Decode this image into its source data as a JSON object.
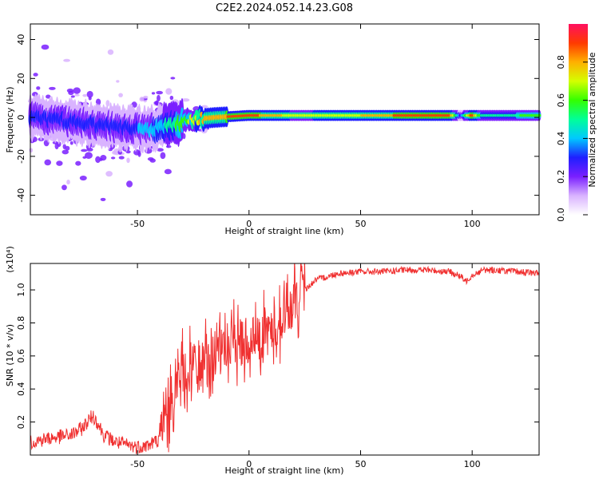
{
  "figure": {
    "title": "C2E2.2024.052.14.23.G08"
  },
  "chart_data": [
    {
      "type": "heatmap",
      "title": "C2E2.2024.052.14.23.G08",
      "xlabel": "Height of straight line (km)",
      "ylabel": "Frequency (Hz)",
      "xlim": [
        -98,
        130
      ],
      "ylim": [
        -50,
        48
      ],
      "xticks": [
        -50,
        0,
        50,
        100
      ],
      "yticks": [
        -40,
        -20,
        0,
        20,
        40
      ],
      "xticklabels": [
        "-50",
        "0",
        "50",
        "100"
      ],
      "yticklabels": [
        "-40",
        "-20",
        "0",
        "20",
        "40"
      ],
      "colorbar": {
        "label": "Normalized spectral amplitude",
        "range": [
          0.0,
          1.0
        ],
        "ticks": [
          0.0,
          0.2,
          0.4,
          0.6,
          0.8
        ],
        "ticklabels": [
          "0.0",
          "0.2",
          "0.4",
          "0.6",
          "0.8"
        ],
        "colormap": [
          "#ffffff",
          "#d9b3ff",
          "#7a1fff",
          "#1f1fff",
          "#00c8ff",
          "#00ff99",
          "#33ff00",
          "#d4ff00",
          "#ffb000",
          "#ff3a00",
          "#ff1060"
        ]
      },
      "ridge_frequency": {
        "x": [
          -98,
          -80,
          -60,
          -45,
          -35,
          -25,
          -15,
          0,
          20,
          60,
          100,
          130
        ],
        "y": [
          0,
          -2,
          -5,
          -6,
          -4,
          -1,
          0,
          1,
          1,
          1,
          1,
          1
        ]
      },
      "peak_amplitude": {
        "x": [
          -98,
          -60,
          -40,
          -30,
          -20,
          0,
          20,
          50,
          80,
          90,
          95,
          100,
          105,
          130
        ],
        "y": [
          0.25,
          0.3,
          0.4,
          0.6,
          0.8,
          0.9,
          0.7,
          0.75,
          0.95,
          0.9,
          0.3,
          0.9,
          0.45,
          0.6
        ]
      }
    },
    {
      "type": "line",
      "xlabel": "Height of straight line (km)",
      "ylabel": "SNR (10 * v/v)",
      "scale_note": "(x10⁴)",
      "xlim": [
        -98,
        130
      ],
      "ylim": [
        0,
        1.16
      ],
      "xticks": [
        -50,
        0,
        50,
        100
      ],
      "yticks": [
        0.2,
        0.4,
        0.6,
        0.8,
        1.0
      ],
      "xticklabels": [
        "-50",
        "0",
        "50",
        "100"
      ],
      "yticklabels": [
        "0.2",
        "0.4",
        "0.6",
        "0.8",
        "1.0"
      ],
      "color": "#f03030",
      "series": [
        {
          "x": [
            -98,
            -90,
            -80,
            -75,
            -70,
            -68,
            -65,
            -60,
            -55,
            -50,
            -45,
            -40,
            -36,
            -34,
            -30,
            -25,
            -20,
            -15,
            -10,
            -5,
            0,
            5,
            10,
            15,
            20,
            25,
            30,
            40,
            50,
            60,
            70,
            80,
            90,
            95,
            97,
            100,
            105,
            110,
            120,
            130
          ],
          "y": [
            0.08,
            0.1,
            0.12,
            0.16,
            0.24,
            0.2,
            0.12,
            0.08,
            0.06,
            0.05,
            0.06,
            0.1,
            0.25,
            0.4,
            0.5,
            0.52,
            0.55,
            0.6,
            0.65,
            0.68,
            0.7,
            0.72,
            0.75,
            0.82,
            0.92,
            1.0,
            1.06,
            1.1,
            1.11,
            1.11,
            1.12,
            1.12,
            1.11,
            1.08,
            1.05,
            1.09,
            1.12,
            1.12,
            1.11,
            1.1
          ]
        }
      ]
    }
  ]
}
